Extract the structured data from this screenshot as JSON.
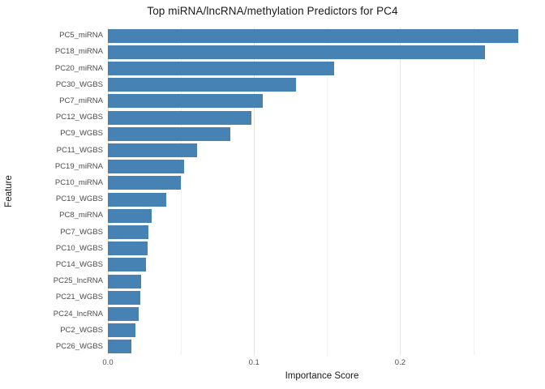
{
  "title": "Top miRNA/lncRNA/methylation Predictors for PC4",
  "chart_data": {
    "type": "bar",
    "orientation": "horizontal",
    "title": "Top miRNA/lncRNA/methylation Predictors for PC4",
    "xlabel": "Importance Score",
    "ylabel": "Feature",
    "categories": [
      "PC5_miRNA",
      "PC18_miRNA",
      "PC20_miRNA",
      "PC30_WGBS",
      "PC7_miRNA",
      "PC12_WGBS",
      "PC9_WGBS",
      "PC11_WGBS",
      "PC19_miRNA",
      "PC10_miRNA",
      "PC19_WGBS",
      "PC8_miRNA",
      "PC7_WGBS",
      "PC10_WGBS",
      "PC14_WGBS",
      "PC25_lncRNA",
      "PC21_WGBS",
      "PC24_lncRNA",
      "PC2_WGBS",
      "PC26_WGBS"
    ],
    "values": [
      0.281,
      0.258,
      0.155,
      0.129,
      0.106,
      0.098,
      0.084,
      0.061,
      0.052,
      0.05,
      0.04,
      0.03,
      0.028,
      0.027,
      0.026,
      0.023,
      0.022,
      0.021,
      0.019,
      0.016
    ],
    "xlim": [
      0,
      0.293
    ],
    "xticks": [
      0.0,
      0.1,
      0.2
    ],
    "xtick_labels": [
      "0.0",
      "0.1",
      "0.2"
    ],
    "minor_ticks": [
      0.05,
      0.15,
      0.25
    ],
    "bar_color": "#4682B4",
    "grid": true,
    "legend": "none",
    "background": "#ffffff"
  }
}
